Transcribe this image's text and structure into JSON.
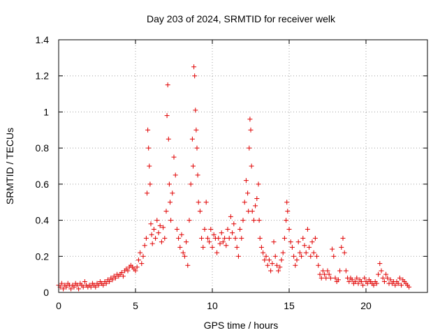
{
  "chart_data": {
    "type": "scatter",
    "title": "Day 203 of 2024, SRMTID for receiver welk",
    "xlabel": "GPS time / hours",
    "ylabel": "SRMTID / TECUs",
    "xlim": [
      0,
      24
    ],
    "ylim": [
      0,
      1.4
    ],
    "xticks": [
      0,
      5,
      10,
      15,
      20
    ],
    "yticks": [
      0,
      0.2,
      0.4,
      0.6,
      0.8,
      1,
      1.2,
      1.4
    ],
    "xtick_labels": [
      "0",
      "5",
      "10",
      "15",
      "20"
    ],
    "ytick_labels": [
      "0",
      "0.2",
      "0.4",
      "0.6",
      "0.8",
      "1",
      "1.2",
      "1.4"
    ],
    "grid": true,
    "marker": "+",
    "color": "#e00000",
    "series": [
      {
        "name": "SRMTID",
        "points": [
          [
            0.0,
            0.04
          ],
          [
            0.1,
            0.03
          ],
          [
            0.2,
            0.05
          ],
          [
            0.3,
            0.02
          ],
          [
            0.4,
            0.04
          ],
          [
            0.5,
            0.03
          ],
          [
            0.6,
            0.05
          ],
          [
            0.7,
            0.04
          ],
          [
            0.8,
            0.02
          ],
          [
            0.9,
            0.04
          ],
          [
            1.0,
            0.03
          ],
          [
            1.1,
            0.05
          ],
          [
            1.2,
            0.04
          ],
          [
            1.3,
            0.02
          ],
          [
            1.4,
            0.05
          ],
          [
            1.5,
            0.04
          ],
          [
            1.6,
            0.03
          ],
          [
            1.7,
            0.06
          ],
          [
            1.8,
            0.04
          ],
          [
            1.9,
            0.03
          ],
          [
            2.0,
            0.04
          ],
          [
            2.1,
            0.03
          ],
          [
            2.2,
            0.05
          ],
          [
            2.3,
            0.04
          ],
          [
            2.4,
            0.03
          ],
          [
            2.5,
            0.05
          ],
          [
            2.6,
            0.04
          ],
          [
            2.7,
            0.06
          ],
          [
            2.8,
            0.05
          ],
          [
            2.9,
            0.04
          ],
          [
            3.0,
            0.06
          ],
          [
            3.1,
            0.05
          ],
          [
            3.2,
            0.07
          ],
          [
            3.3,
            0.06
          ],
          [
            3.4,
            0.08
          ],
          [
            3.5,
            0.07
          ],
          [
            3.6,
            0.09
          ],
          [
            3.7,
            0.08
          ],
          [
            3.8,
            0.1
          ],
          [
            3.9,
            0.09
          ],
          [
            4.0,
            0.1
          ],
          [
            4.1,
            0.11
          ],
          [
            4.2,
            0.09
          ],
          [
            4.3,
            0.12
          ],
          [
            4.4,
            0.13
          ],
          [
            4.5,
            0.12
          ],
          [
            4.6,
            0.14
          ],
          [
            4.7,
            0.15
          ],
          [
            4.8,
            0.14
          ],
          [
            4.9,
            0.13
          ],
          [
            5.0,
            0.12
          ],
          [
            5.1,
            0.14
          ],
          [
            5.2,
            0.18
          ],
          [
            5.3,
            0.22
          ],
          [
            5.4,
            0.16
          ],
          [
            5.5,
            0.2
          ],
          [
            5.6,
            0.26
          ],
          [
            5.7,
            0.3
          ],
          [
            5.75,
            0.55
          ],
          [
            5.8,
            0.9
          ],
          [
            5.85,
            0.8
          ],
          [
            5.9,
            0.7
          ],
          [
            5.95,
            0.6
          ],
          [
            6.0,
            0.38
          ],
          [
            6.05,
            0.32
          ],
          [
            6.1,
            0.27
          ],
          [
            6.2,
            0.35
          ],
          [
            6.3,
            0.3
          ],
          [
            6.4,
            0.4
          ],
          [
            6.5,
            0.33
          ],
          [
            6.6,
            0.37
          ],
          [
            6.7,
            0.28
          ],
          [
            6.8,
            0.36
          ],
          [
            6.9,
            0.3
          ],
          [
            7.0,
            0.45
          ],
          [
            7.05,
            0.98
          ],
          [
            7.1,
            1.15
          ],
          [
            7.15,
            0.85
          ],
          [
            7.2,
            0.6
          ],
          [
            7.25,
            0.5
          ],
          [
            7.3,
            0.4
          ],
          [
            7.4,
            0.55
          ],
          [
            7.5,
            0.75
          ],
          [
            7.6,
            0.65
          ],
          [
            7.7,
            0.35
          ],
          [
            7.8,
            0.3
          ],
          [
            7.9,
            0.25
          ],
          [
            8.0,
            0.32
          ],
          [
            8.1,
            0.22
          ],
          [
            8.2,
            0.2
          ],
          [
            8.3,
            0.28
          ],
          [
            8.4,
            0.15
          ],
          [
            8.5,
            0.4
          ],
          [
            8.6,
            0.6
          ],
          [
            8.7,
            0.85
          ],
          [
            8.75,
            0.7
          ],
          [
            8.8,
            1.25
          ],
          [
            8.85,
            1.2
          ],
          [
            8.9,
            1.01
          ],
          [
            8.95,
            0.9
          ],
          [
            9.0,
            0.8
          ],
          [
            9.05,
            0.65
          ],
          [
            9.1,
            0.5
          ],
          [
            9.2,
            0.45
          ],
          [
            9.3,
            0.3
          ],
          [
            9.4,
            0.25
          ],
          [
            9.5,
            0.35
          ],
          [
            9.6,
            0.5
          ],
          [
            9.7,
            0.3
          ],
          [
            9.8,
            0.28
          ],
          [
            9.9,
            0.35
          ],
          [
            10.0,
            0.25
          ],
          [
            10.1,
            0.32
          ],
          [
            10.2,
            0.3
          ],
          [
            10.3,
            0.22
          ],
          [
            10.4,
            0.3
          ],
          [
            10.5,
            0.27
          ],
          [
            10.6,
            0.33
          ],
          [
            10.7,
            0.28
          ],
          [
            10.8,
            0.3
          ],
          [
            10.9,
            0.26
          ],
          [
            11.0,
            0.35
          ],
          [
            11.1,
            0.3
          ],
          [
            11.2,
            0.42
          ],
          [
            11.3,
            0.33
          ],
          [
            11.4,
            0.38
          ],
          [
            11.5,
            0.3
          ],
          [
            11.6,
            0.25
          ],
          [
            11.7,
            0.2
          ],
          [
            11.8,
            0.35
          ],
          [
            11.9,
            0.3
          ],
          [
            12.0,
            0.4
          ],
          [
            12.1,
            0.5
          ],
          [
            12.2,
            0.62
          ],
          [
            12.3,
            0.55
          ],
          [
            12.35,
            0.45
          ],
          [
            12.4,
            0.8
          ],
          [
            12.45,
            0.96
          ],
          [
            12.5,
            0.9
          ],
          [
            12.55,
            0.7
          ],
          [
            12.6,
            0.45
          ],
          [
            12.7,
            0.4
          ],
          [
            12.8,
            0.48
          ],
          [
            12.9,
            0.52
          ],
          [
            13.0,
            0.6
          ],
          [
            13.05,
            0.4
          ],
          [
            13.1,
            0.3
          ],
          [
            13.2,
            0.25
          ],
          [
            13.3,
            0.22
          ],
          [
            13.4,
            0.18
          ],
          [
            13.5,
            0.2
          ],
          [
            13.6,
            0.15
          ],
          [
            13.7,
            0.18
          ],
          [
            13.8,
            0.12
          ],
          [
            13.9,
            0.16
          ],
          [
            14.0,
            0.28
          ],
          [
            14.1,
            0.2
          ],
          [
            14.2,
            0.15
          ],
          [
            14.3,
            0.12
          ],
          [
            14.4,
            0.14
          ],
          [
            14.5,
            0.18
          ],
          [
            14.6,
            0.22
          ],
          [
            14.7,
            0.3
          ],
          [
            14.8,
            0.4
          ],
          [
            14.85,
            0.5
          ],
          [
            14.9,
            0.45
          ],
          [
            15.0,
            0.35
          ],
          [
            15.1,
            0.28
          ],
          [
            15.2,
            0.25
          ],
          [
            15.3,
            0.2
          ],
          [
            15.4,
            0.15
          ],
          [
            15.5,
            0.18
          ],
          [
            15.6,
            0.28
          ],
          [
            15.7,
            0.22
          ],
          [
            15.8,
            0.2
          ],
          [
            15.9,
            0.3
          ],
          [
            16.0,
            0.26
          ],
          [
            16.1,
            0.22
          ],
          [
            16.2,
            0.35
          ],
          [
            16.3,
            0.25
          ],
          [
            16.4,
            0.2
          ],
          [
            16.5,
            0.28
          ],
          [
            16.6,
            0.22
          ],
          [
            16.7,
            0.3
          ],
          [
            16.8,
            0.2
          ],
          [
            16.9,
            0.15
          ],
          [
            17.0,
            0.1
          ],
          [
            17.1,
            0.08
          ],
          [
            17.2,
            0.12
          ],
          [
            17.3,
            0.1
          ],
          [
            17.4,
            0.08
          ],
          [
            17.5,
            0.12
          ],
          [
            17.6,
            0.1
          ],
          [
            17.7,
            0.08
          ],
          [
            17.8,
            0.24
          ],
          [
            17.9,
            0.2
          ],
          [
            18.0,
            0.08
          ],
          [
            18.1,
            0.06
          ],
          [
            18.2,
            0.07
          ],
          [
            18.3,
            0.12
          ],
          [
            18.4,
            0.25
          ],
          [
            18.5,
            0.3
          ],
          [
            18.6,
            0.22
          ],
          [
            18.7,
            0.12
          ],
          [
            18.8,
            0.08
          ],
          [
            18.9,
            0.06
          ],
          [
            19.0,
            0.08
          ],
          [
            19.1,
            0.07
          ],
          [
            19.2,
            0.05
          ],
          [
            19.3,
            0.06
          ],
          [
            19.4,
            0.08
          ],
          [
            19.5,
            0.05
          ],
          [
            19.6,
            0.07
          ],
          [
            19.7,
            0.06
          ],
          [
            19.8,
            0.04
          ],
          [
            19.9,
            0.08
          ],
          [
            20.0,
            0.06
          ],
          [
            20.1,
            0.05
          ],
          [
            20.2,
            0.07
          ],
          [
            20.3,
            0.06
          ],
          [
            20.4,
            0.05
          ],
          [
            20.5,
            0.04
          ],
          [
            20.6,
            0.06
          ],
          [
            20.7,
            0.05
          ],
          [
            20.8,
            0.1
          ],
          [
            20.9,
            0.16
          ],
          [
            21.0,
            0.12
          ],
          [
            21.1,
            0.08
          ],
          [
            21.2,
            0.06
          ],
          [
            21.3,
            0.1
          ],
          [
            21.4,
            0.08
          ],
          [
            21.5,
            0.05
          ],
          [
            21.6,
            0.07
          ],
          [
            21.7,
            0.05
          ],
          [
            21.8,
            0.06
          ],
          [
            21.9,
            0.04
          ],
          [
            22.0,
            0.06
          ],
          [
            22.1,
            0.05
          ],
          [
            22.2,
            0.08
          ],
          [
            22.3,
            0.04
          ],
          [
            22.4,
            0.07
          ],
          [
            22.5,
            0.06
          ],
          [
            22.6,
            0.05
          ],
          [
            22.7,
            0.04
          ],
          [
            22.8,
            0.03
          ]
        ]
      }
    ]
  }
}
